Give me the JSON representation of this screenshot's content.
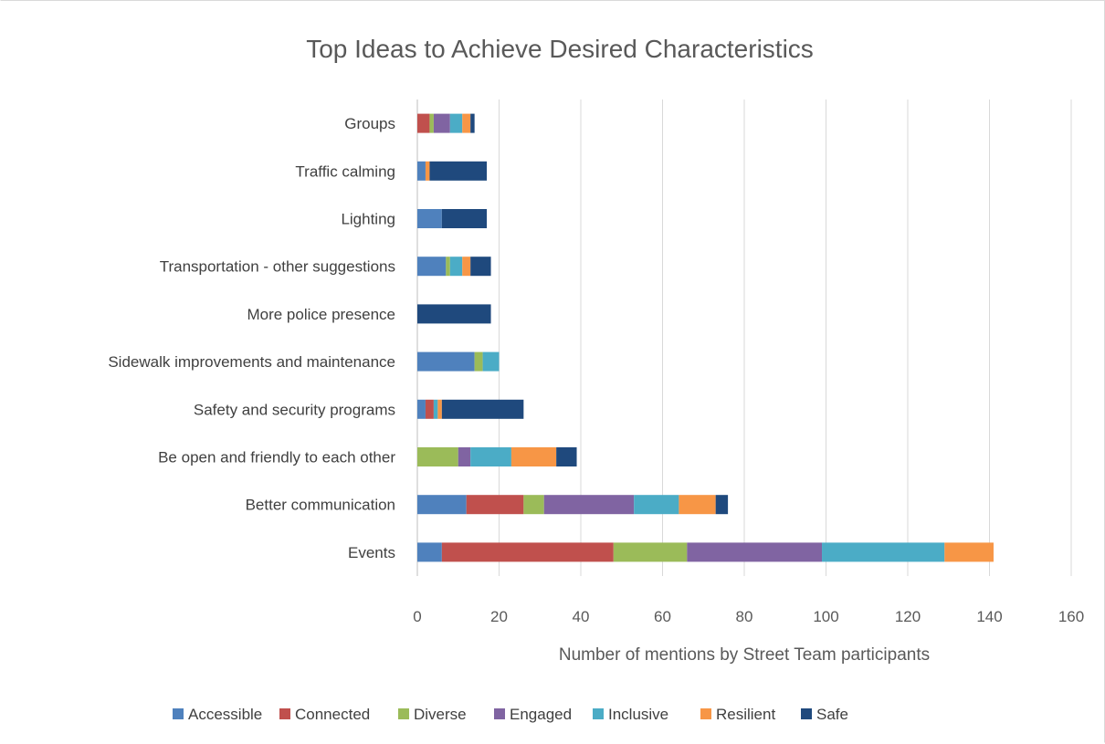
{
  "chart_data": {
    "type": "bar",
    "orientation": "horizontal",
    "stacked": true,
    "title": "Top Ideas to Achieve Desired Characteristics",
    "xlabel": "Number of mentions by Street Team participants",
    "ylabel": "",
    "xlim": [
      0,
      160
    ],
    "xticks": [
      "0",
      "20",
      "40",
      "60",
      "80",
      "100",
      "120",
      "140",
      "160"
    ],
    "grid": true,
    "legend_position": "bottom",
    "categories": [
      "Events",
      "Better communication",
      "Be open and friendly to each other",
      "Safety and security programs",
      "Sidewalk improvements and maintenance",
      "More police presence",
      "Transportation - other suggestions",
      "Lighting",
      "Traffic calming",
      "Groups"
    ],
    "series": [
      {
        "name": "Accessible",
        "color": "#4f81bd",
        "values": [
          6,
          12,
          0,
          2,
          14,
          0,
          7,
          6,
          2,
          0
        ]
      },
      {
        "name": "Connected",
        "color": "#c0504d",
        "values": [
          42,
          14,
          0,
          2,
          0,
          0,
          0,
          0,
          0,
          3
        ]
      },
      {
        "name": "Diverse",
        "color": "#9bbb59",
        "values": [
          18,
          5,
          10,
          0,
          2,
          0,
          1,
          0,
          0,
          1
        ]
      },
      {
        "name": "Engaged",
        "color": "#8064a2",
        "values": [
          33,
          22,
          3,
          0,
          0,
          0,
          0,
          0,
          0,
          4
        ]
      },
      {
        "name": "Inclusive",
        "color": "#4bacc6",
        "values": [
          30,
          11,
          10,
          1,
          4,
          0,
          3,
          0,
          0,
          3
        ]
      },
      {
        "name": "Resilient",
        "color": "#f79646",
        "values": [
          12,
          9,
          11,
          1,
          0,
          0,
          2,
          0,
          1,
          2
        ]
      },
      {
        "name": "Safe",
        "color": "#1f497d",
        "values": [
          0,
          3,
          5,
          20,
          0,
          18,
          5,
          11,
          14,
          1
        ]
      }
    ]
  }
}
